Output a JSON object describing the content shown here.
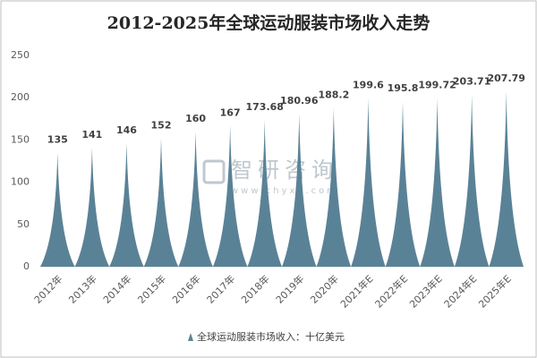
{
  "chart_data": {
    "type": "bar",
    "title": "2012-2025年全球运动服装市场收入走势",
    "categories": [
      "2012年",
      "2013年",
      "2014年",
      "2015年",
      "2016年",
      "2017年",
      "2018年",
      "2019年",
      "2020年",
      "2021年E",
      "2022年E",
      "2023年E",
      "2024年E",
      "2025年E"
    ],
    "series": [
      {
        "name": "全球运动服装市场收入：十亿美元",
        "color": "#5a8296",
        "values": [
          135,
          141,
          146,
          152,
          160,
          167,
          173.68,
          180.96,
          188.2,
          199.6,
          195.8,
          199.72,
          203.71,
          207.79
        ]
      }
    ],
    "ylim": [
      0,
      250
    ],
    "yticks": [
      0,
      50,
      100,
      150,
      200,
      250
    ],
    "grid": false,
    "legend": "bottom",
    "watermark": {
      "brand": "智研咨询",
      "site": "www.chyxx.com"
    }
  }
}
